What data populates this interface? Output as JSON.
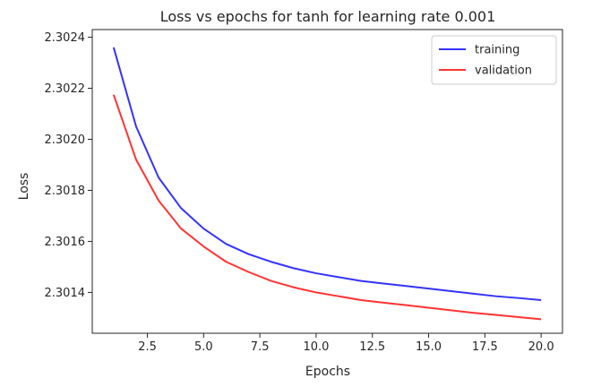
{
  "chart_data": {
    "type": "line",
    "title": "Loss vs epochs for tanh for learning rate 0.001",
    "xlabel": "Epochs",
    "ylabel": "Loss",
    "xlim": [
      0.05,
      20.95
    ],
    "ylim": [
      2.30124,
      2.30243
    ],
    "xticks": [
      2.5,
      5.0,
      7.5,
      10.0,
      12.5,
      15.0,
      17.5,
      20.0
    ],
    "xtick_labels": [
      "2.5",
      "5.0",
      "7.5",
      "10.0",
      "12.5",
      "15.0",
      "17.5",
      "20.0"
    ],
    "yticks": [
      2.3014,
      2.3016,
      2.3018,
      2.302,
      2.3022,
      2.3024
    ],
    "ytick_labels": [
      "2.3014",
      "2.3016",
      "2.3018",
      "2.3020",
      "2.3022",
      "2.3024"
    ],
    "grid": false,
    "legend_position": "top-right",
    "x": [
      1,
      2,
      3,
      4,
      5,
      6,
      7,
      8,
      9,
      10,
      11,
      12,
      13,
      14,
      15,
      16,
      17,
      18,
      19,
      20
    ],
    "series": [
      {
        "name": "training",
        "color": "#3333ff",
        "values": [
          2.30236,
          2.30205,
          2.30185,
          2.30173,
          2.30165,
          2.30159,
          2.30155,
          2.30152,
          2.301495,
          2.301475,
          2.30146,
          2.301445,
          2.301435,
          2.301425,
          2.301415,
          2.301405,
          2.301395,
          2.301385,
          2.301378,
          2.30137
        ]
      },
      {
        "name": "validation",
        "color": "#ff3333",
        "values": [
          2.302175,
          2.30192,
          2.30176,
          2.30165,
          2.30158,
          2.30152,
          2.30148,
          2.301445,
          2.30142,
          2.3014,
          2.301385,
          2.30137,
          2.30136,
          2.30135,
          2.30134,
          2.30133,
          2.30132,
          2.301312,
          2.301303,
          2.301295
        ]
      }
    ]
  }
}
